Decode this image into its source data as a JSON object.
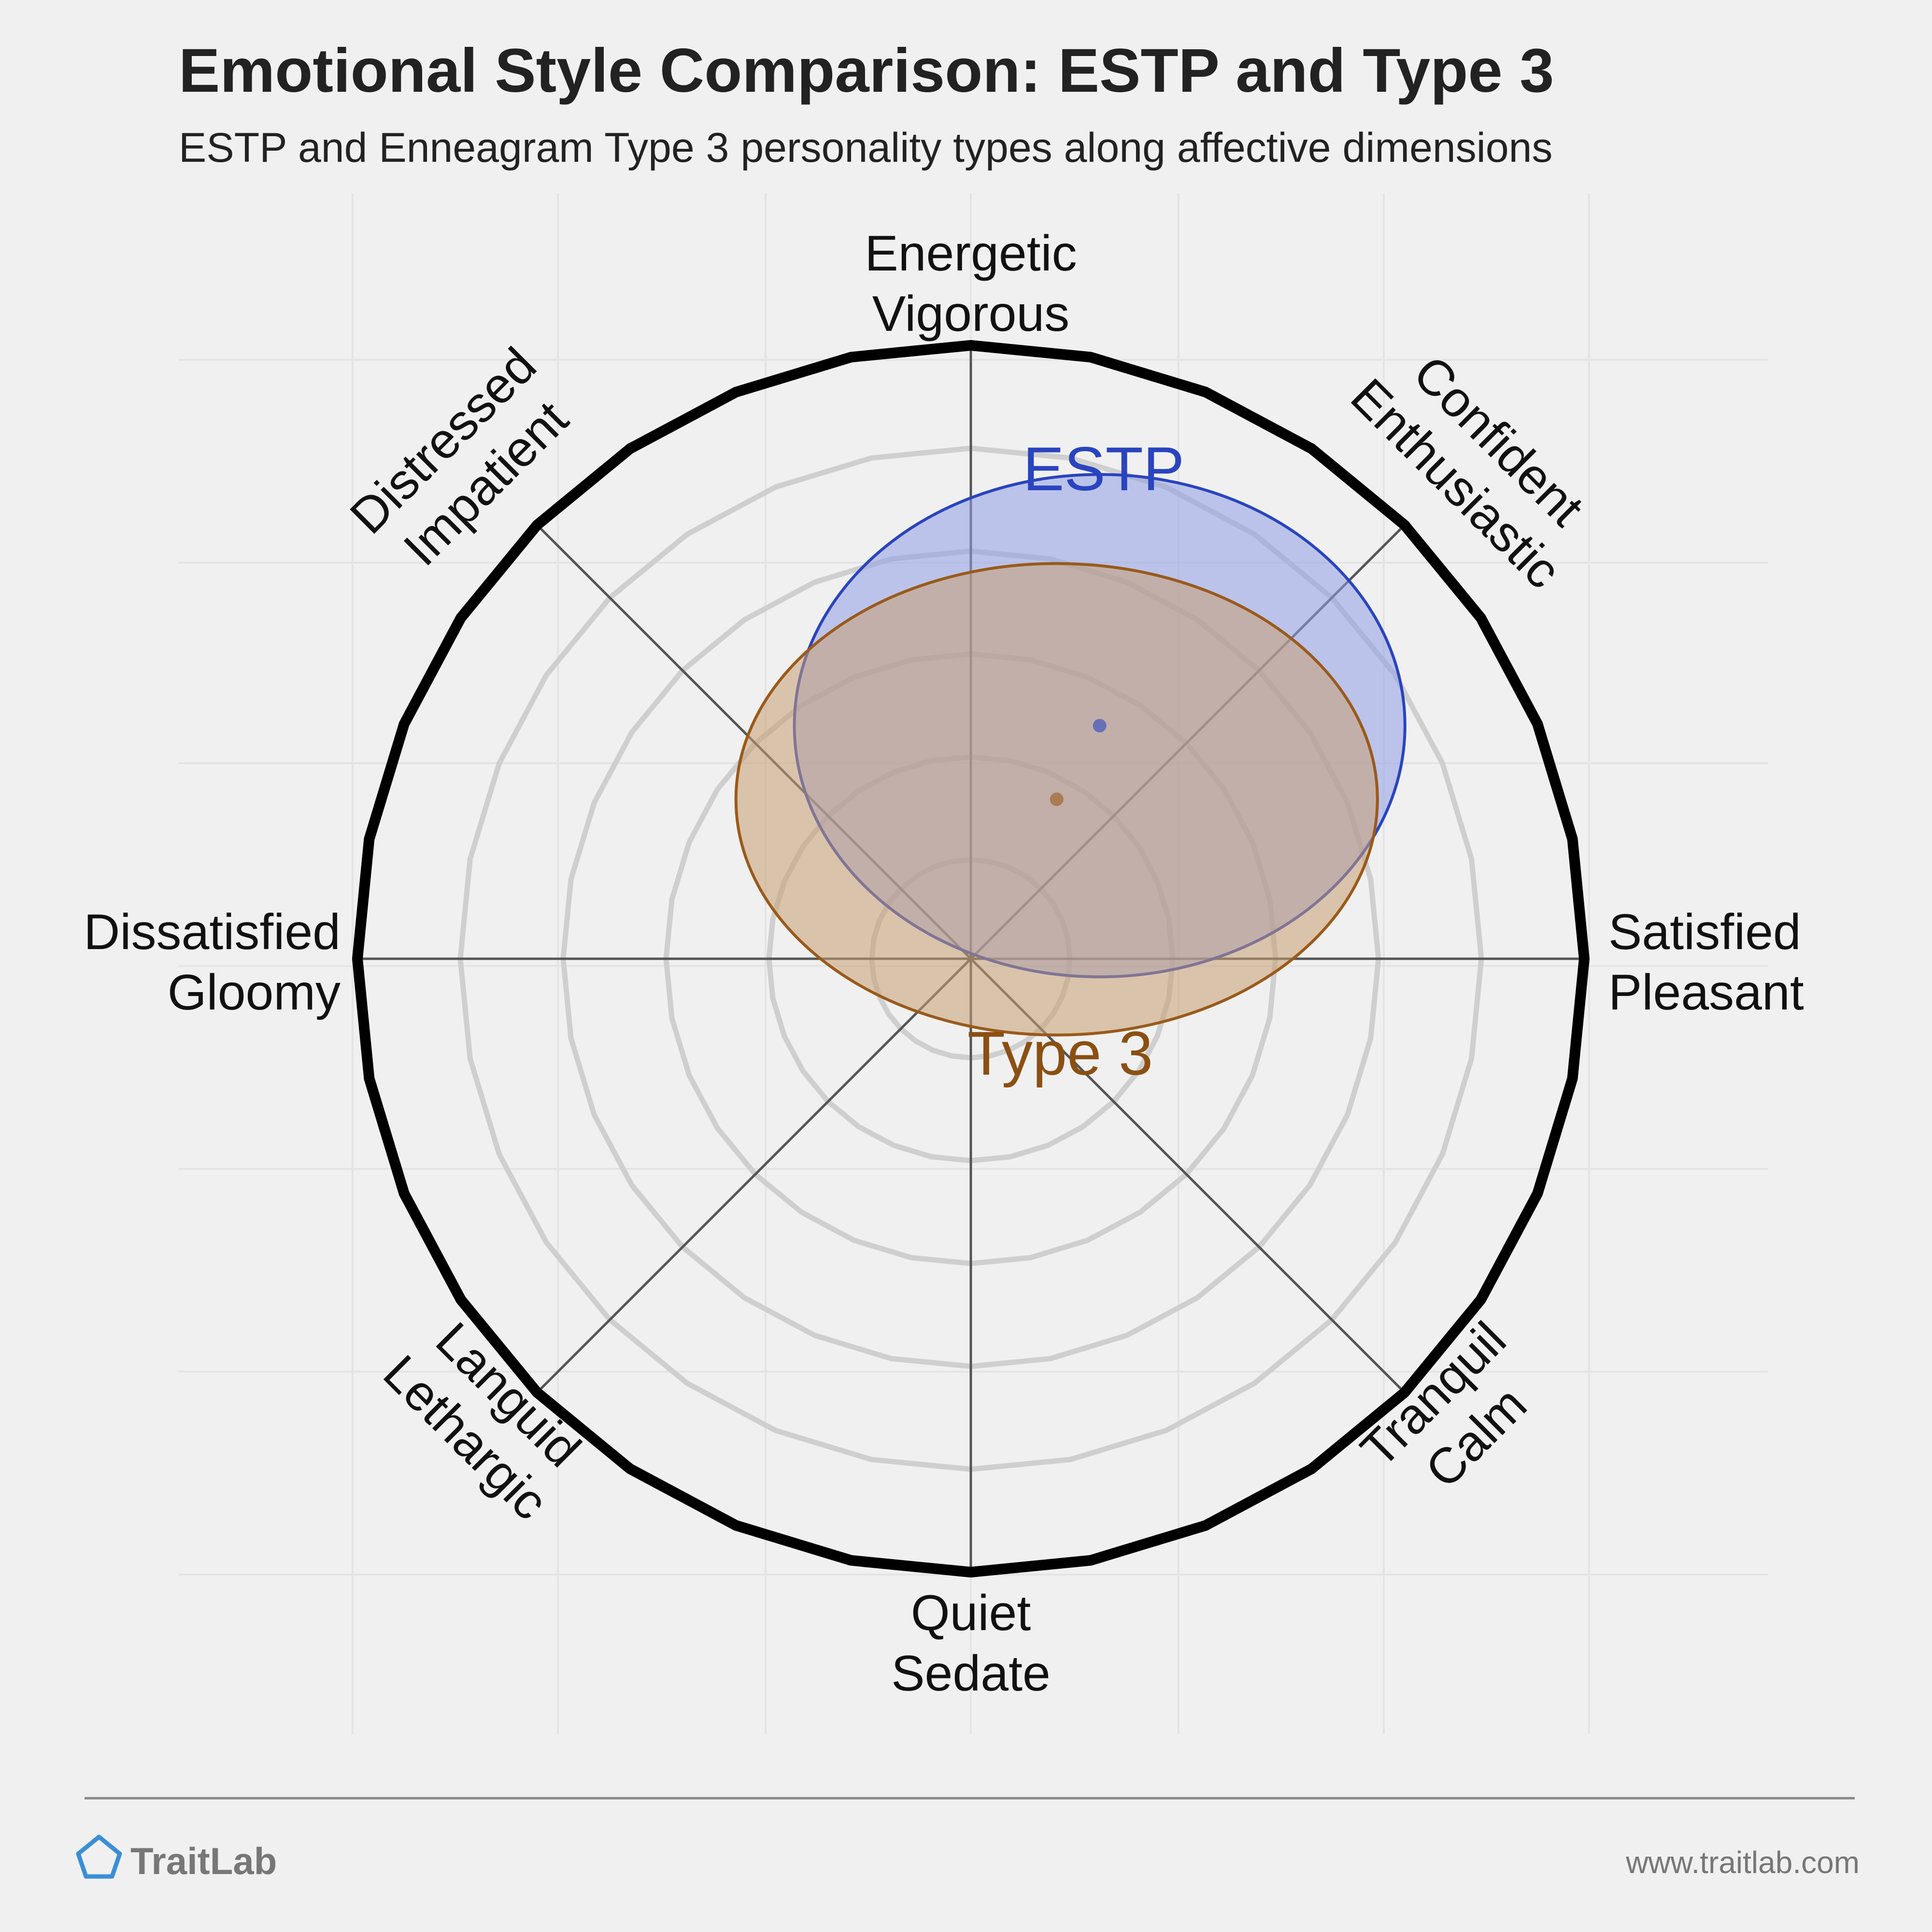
{
  "title": "Emotional Style Comparison: ESTP and Type 3",
  "subtitle": "ESTP and Enneagram Type 3 personality types along affective dimensions",
  "axis_labels": {
    "top": [
      "Energetic",
      "Vigorous"
    ],
    "top_right": [
      "Confident",
      "Enthusiastic"
    ],
    "right": [
      "Satisfied",
      "Pleasant"
    ],
    "bottom_right": [
      "Tranquil",
      "Calm"
    ],
    "bottom": [
      "Quiet",
      "Sedate"
    ],
    "bottom_left": [
      "Languid",
      "Lethargic"
    ],
    "left": [
      "Dissatisfied",
      "Gloomy"
    ],
    "top_left": [
      "Distressed",
      "Impatient"
    ]
  },
  "chart_data": {
    "type": "scatter",
    "axes": {
      "x": {
        "negative": "Dissatisfied / Gloomy",
        "positive": "Satisfied / Pleasant",
        "range": [
          -1,
          1
        ]
      },
      "y": {
        "negative": "Quiet / Sedate",
        "positive": "Energetic / Vigorous",
        "range": [
          -1,
          1
        ]
      }
    },
    "grid": true,
    "series": [
      {
        "name": "ESTP",
        "center": [
          0.21,
          0.38
        ],
        "spread": [
          0.79,
          0.65
        ],
        "color": "#2a44bf",
        "fill": "#8f9fe6"
      },
      {
        "name": "Type 3",
        "center": [
          0.14,
          0.26
        ],
        "spread": [
          0.83,
          0.61
        ],
        "color": "#9a5a1a",
        "fill": "#c99f73"
      }
    ]
  },
  "footer": {
    "brand": "TraitLab",
    "url": "www.traitlab.com"
  },
  "colors": {
    "estp": "#2a44bf",
    "type3": "#8b4f12",
    "background": "#f0f0f0",
    "brand_icon": "#3a8fd6"
  }
}
